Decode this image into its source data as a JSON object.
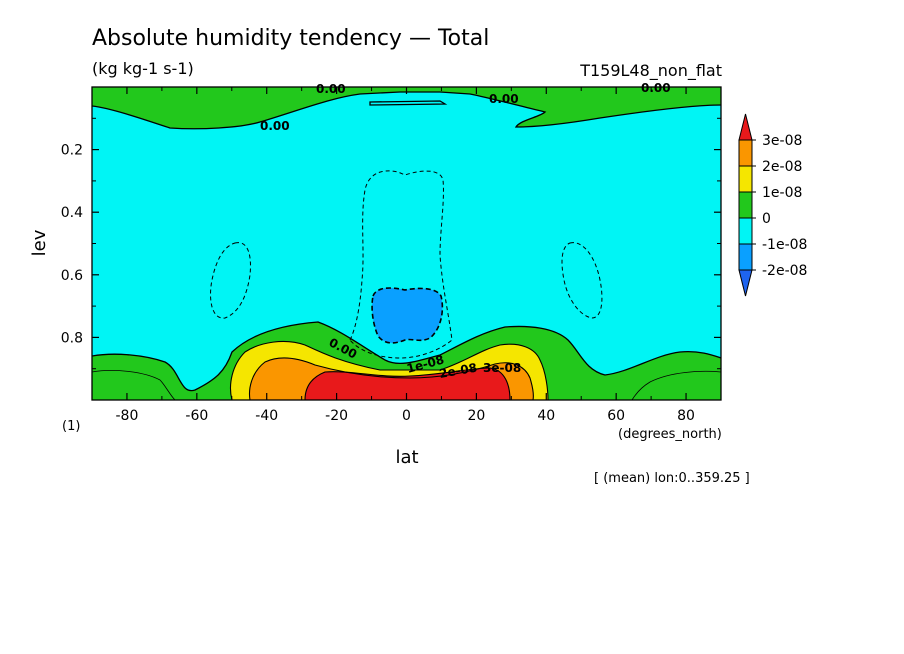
{
  "chart_data": {
    "type": "heatmap",
    "title": "Absolute humidity tendency — Total",
    "units": "(kg kg-1 s-1)",
    "experiment": "T159L48_non_flat",
    "xlabel": "lat",
    "xunits": "(degrees_north)",
    "ylabel": "lev",
    "yunits": "(1)",
    "averaging_note": "[ (mean) lon:0..359.25 ]",
    "xlim": [
      -90,
      90
    ],
    "ylim": [
      1.0,
      0.0
    ],
    "y_inverted": true,
    "x_ticks": [
      "-80",
      "-60",
      "-40",
      "-20",
      "0",
      "20",
      "40",
      "60",
      "80"
    ],
    "x_tick_values": [
      -80,
      -60,
      -40,
      -20,
      0,
      20,
      40,
      60,
      80
    ],
    "y_ticks": [
      "0.2",
      "0.4",
      "0.6",
      "0.8"
    ],
    "y_tick_values": [
      0.2,
      0.4,
      0.6,
      0.8
    ],
    "colorbar": {
      "labels": [
        "3e-08",
        "2e-08",
        "1e-08",
        "0",
        "-1e-08",
        "-2e-08"
      ],
      "levels": [
        3e-08,
        2e-08,
        1e-08,
        0,
        -1e-08,
        -2e-08
      ],
      "colors": [
        "#e8191b",
        "#fa9600",
        "#f5e600",
        "#22c81c",
        "#00f5f5",
        "#0aa0ff",
        "#1e64f0"
      ]
    },
    "contour_labels": [
      "0.00",
      "0.00",
      "0.00",
      "0.00",
      "0.00",
      "1e-08",
      "2e-08",
      "3e-08"
    ],
    "regions": [
      {
        "name": "near-surface tropical maximum",
        "lat_range": [
          -25,
          28
        ],
        "lev_range": [
          0.92,
          1.0
        ],
        "value_class": ">3e-08"
      },
      {
        "name": "lower-tropospheric moistening",
        "lat_range": [
          -45,
          45
        ],
        "lev_range": [
          0.82,
          1.0
        ],
        "value_class": ">0"
      },
      {
        "name": "mid-troposphere drying",
        "lat_range": [
          -10,
          10
        ],
        "lev_range": [
          0.65,
          0.82
        ],
        "value_class": "-2e-08 to -1e-08"
      },
      {
        "name": "upper-level positive band",
        "lat_range": [
          -90,
          90
        ],
        "lev_range": [
          0.0,
          0.12
        ],
        "value_class": "0 to 1e-08"
      },
      {
        "name": "polar lower levels",
        "lat_range": [
          -90,
          -60
        ],
        "lev_range": [
          0.85,
          1.0
        ],
        "value_class": "0 to 1e-08"
      },
      {
        "name": "polar lower levels",
        "lat_range": [
          55,
          90
        ],
        "lev_range": [
          0.85,
          1.0
        ],
        "value_class": "0 to 1e-08"
      }
    ]
  }
}
